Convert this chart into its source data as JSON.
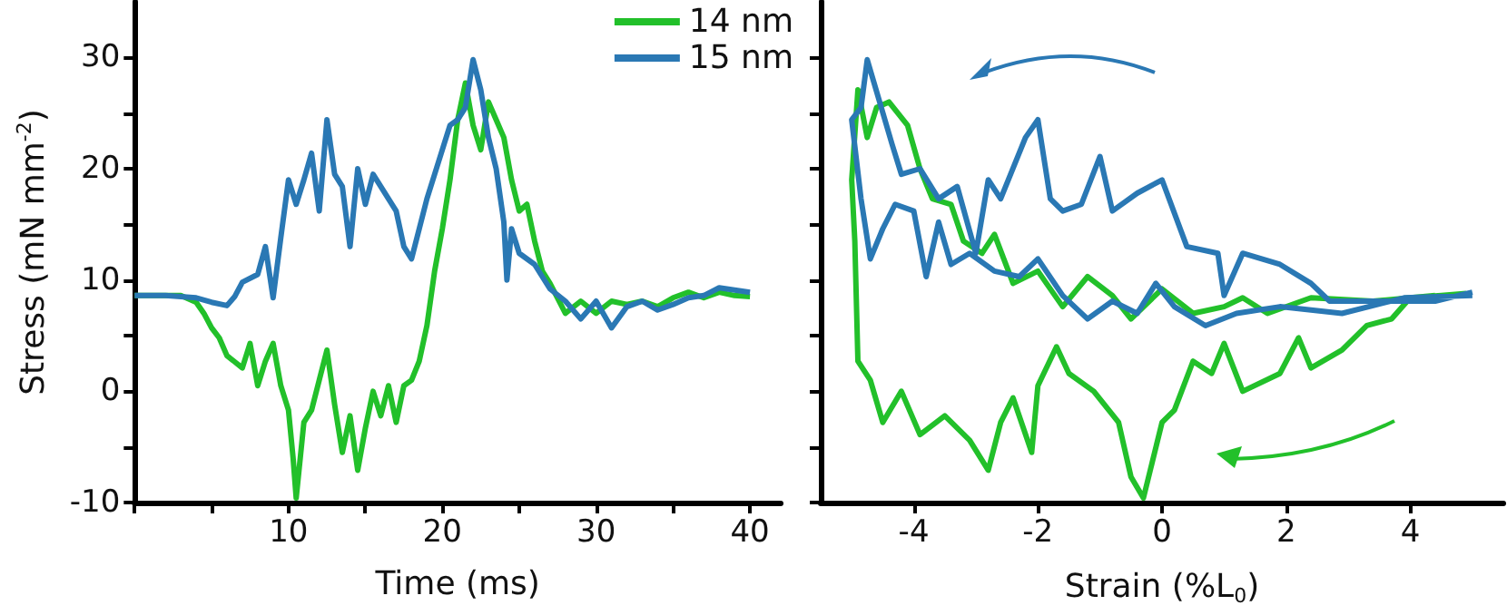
{
  "chart_data": [
    {
      "type": "line",
      "xlabel": "Time (ms)",
      "ylabel": "Stress (mN mm$^{-2}$)",
      "xlim": [
        0,
        42
      ],
      "ylim": [
        -10,
        35
      ],
      "xticks": [
        {
          "value": 0,
          "label": null
        },
        {
          "value": 5,
          "label": null
        },
        10,
        {
          "value": 15,
          "label": null
        },
        20,
        {
          "value": 25,
          "label": null
        },
        30,
        {
          "value": 35,
          "label": null
        },
        40
      ],
      "yticks": [
        -10,
        {
          "value": -5,
          "label": null
        },
        0,
        {
          "value": 5,
          "label": null
        },
        10,
        {
          "value": 15,
          "label": null
        },
        20,
        {
          "value": 25,
          "label": null
        },
        30
      ],
      "legend": "top right",
      "marker": "none",
      "series": [
        {
          "name": "14 nm",
          "color": "#22c02a",
          "x": [
            0,
            2,
            3,
            4,
            4.5,
            5,
            5.5,
            6,
            7,
            7.5,
            8,
            8.5,
            9,
            9.5,
            10,
            10.3,
            10.5,
            11,
            11.5,
            12,
            12.5,
            13,
            13.5,
            14,
            14.5,
            15,
            15.5,
            16,
            16.5,
            17,
            17.5,
            18,
            18.5,
            19,
            19.5,
            20,
            20.5,
            21,
            21.5,
            22,
            22.5,
            23,
            23.5,
            24,
            24.5,
            25,
            25.5,
            26,
            26.5,
            27,
            28,
            29,
            30,
            31,
            32,
            33,
            34,
            35,
            36,
            37,
            38,
            39,
            40
          ],
          "values": [
            8.6,
            8.6,
            8.6,
            8.0,
            7.0,
            5.7,
            4.8,
            3.2,
            2.1,
            4.3,
            0.5,
            2.7,
            4.3,
            0.5,
            -1.7,
            -6.0,
            -9.6,
            -2.8,
            -1.7,
            1.0,
            3.7,
            -1.2,
            -5.5,
            -2.2,
            -7.1,
            -3.3,
            0.0,
            -2.2,
            0.5,
            -2.8,
            0.5,
            1.0,
            2.7,
            5.9,
            10.8,
            14.6,
            19.0,
            24.4,
            27.7,
            23.9,
            21.7,
            26.0,
            24.4,
            22.8,
            19.0,
            16.2,
            16.8,
            13.5,
            10.8,
            9.7,
            7.0,
            8.1,
            7.0,
            8.1,
            7.8,
            8.1,
            7.6,
            8.4,
            8.9,
            8.4,
            8.9,
            8.6,
            8.5
          ]
        },
        {
          "name": "15 nm",
          "color": "#2a78b4",
          "x": [
            0,
            2,
            4,
            5,
            6,
            6.5,
            7,
            8,
            8.5,
            9,
            9.5,
            10,
            10.5,
            11,
            11.5,
            12,
            12.5,
            13,
            13.5,
            14,
            14.5,
            15,
            15.5,
            16,
            17,
            17.5,
            18,
            18.5,
            19,
            19.5,
            20,
            20.5,
            21,
            21.5,
            22,
            22.5,
            23,
            23.5,
            24,
            24.2,
            24.5,
            25,
            26,
            27,
            28,
            29,
            30,
            31,
            32,
            33,
            34,
            35,
            36,
            37,
            38,
            39,
            40
          ],
          "values": [
            8.6,
            8.6,
            8.4,
            8.0,
            7.7,
            8.5,
            9.8,
            10.5,
            13.0,
            8.4,
            13.8,
            19.0,
            16.8,
            19.0,
            21.4,
            16.2,
            24.4,
            19.5,
            18.4,
            13.0,
            20.0,
            16.8,
            19.5,
            18.4,
            16.2,
            13.0,
            11.9,
            14.6,
            17.3,
            19.5,
            21.7,
            23.9,
            24.4,
            25.5,
            29.8,
            27.1,
            22.8,
            20.0,
            15.2,
            10.0,
            14.6,
            12.4,
            11.4,
            9.2,
            8.1,
            6.5,
            8.1,
            5.7,
            7.6,
            8.1,
            7.3,
            7.8,
            8.4,
            8.6,
            9.3,
            9.1,
            8.9
          ]
        }
      ]
    },
    {
      "type": "line",
      "xlabel": "Strain (%L$_{0}$)",
      "xlim": [
        -5.5,
        5.5
      ],
      "ylim": [
        -10,
        35
      ],
      "xticks": [
        -4,
        -2,
        0,
        2,
        4
      ],
      "yticks": [
        -10,
        {
          "value": -5,
          "label": null
        },
        0,
        {
          "value": 5,
          "label": null
        },
        10,
        {
          "value": 15,
          "label": null
        },
        20,
        {
          "value": 25,
          "label": null
        },
        30
      ],
      "tick_labels": "x",
      "marker": "none",
      "series": [
        {
          "color": "#22c02a",
          "x": [
            4.9,
            4.5,
            4,
            3.7,
            3.3,
            2.9,
            2.4,
            2.2,
            1.9,
            1.3,
            1.0,
            0.8,
            0.5,
            0.2,
            0,
            -0.3,
            -0.5,
            -0.7,
            -1.1,
            -1.5,
            -1.7,
            -2.0,
            -2.1,
            -2.4,
            -2.6,
            -2.8,
            -3.1,
            -3.5,
            -3.9,
            -4.2,
            -4.5,
            -4.7,
            -4.9,
            -4.95,
            -5,
            -4.9,
            -4.75,
            -4.6,
            -4.4,
            -4.1,
            -3.9,
            -3.7,
            -3.4,
            -3.2,
            -2.9,
            -2.7,
            -2.4,
            -2,
            -1.6,
            -1.2,
            -0.8,
            -0.5,
            0,
            0.5,
            1,
            1.3,
            1.7,
            2.4,
            3.4,
            4.4
          ],
          "values": [
            8.8,
            8.6,
            8.4,
            6.5,
            5.9,
            3.7,
            2.1,
            4.8,
            1.6,
            0.0,
            4.3,
            1.6,
            2.7,
            -1.7,
            -2.8,
            -9.6,
            -7.7,
            -2.8,
            0.0,
            1.6,
            4.0,
            0.5,
            -5.5,
            -0.6,
            -2.8,
            -7.1,
            -4.4,
            -2.2,
            -3.9,
            0.0,
            -2.8,
            1.0,
            2.7,
            13.5,
            19.0,
            27.1,
            22.8,
            25.5,
            26.0,
            23.9,
            20.0,
            17.3,
            16.8,
            13.5,
            12.4,
            14.1,
            9.7,
            10.8,
            7.6,
            10.3,
            8.6,
            6.5,
            9.2,
            7.0,
            7.6,
            8.4,
            7.0,
            8.4,
            8.1,
            8.6
          ]
        },
        {
          "color": "#2a78b4",
          "x": [
            5,
            3.9,
            2.9,
            1.9,
            1.2,
            0.7,
            0.2,
            -0.1,
            -0.4,
            -0.8,
            -1.2,
            -1.6,
            -2,
            -2.3,
            -2.7,
            -3.1,
            -3.4,
            -3.6,
            -3.8,
            -4,
            -4.3,
            -4.5,
            -4.7,
            -4.85,
            -5,
            -4.85,
            -4.75,
            -4.55,
            -4.35,
            -4.2,
            -3.9,
            -3.6,
            -3.3,
            -3,
            -2.8,
            -2.6,
            -2.2,
            -2,
            -1.8,
            -1.6,
            -1.3,
            -1,
            -0.8,
            -0.4,
            0,
            0.4,
            0.9,
            1,
            1.3,
            1.9,
            2.4,
            2.7,
            3.4,
            4.4,
            5
          ],
          "values": [
            8.6,
            8.4,
            7.0,
            7.6,
            7.0,
            5.9,
            7.6,
            9.7,
            7.0,
            8.1,
            6.5,
            8.6,
            11.9,
            10.3,
            10.8,
            12.4,
            11.4,
            15.2,
            10.3,
            16.2,
            16.8,
            14.6,
            11.9,
            17.3,
            24.4,
            25.5,
            29.8,
            26.0,
            22.2,
            19.5,
            20.0,
            17.3,
            18.4,
            12.4,
            19.0,
            17.3,
            22.8,
            24.4,
            17.3,
            16.2,
            16.8,
            21.1,
            16.2,
            17.8,
            19.0,
            13.0,
            12.4,
            8.6,
            12.4,
            11.4,
            9.7,
            8.1,
            8.1,
            8.1,
            8.9
          ]
        }
      ]
    }
  ]
}
